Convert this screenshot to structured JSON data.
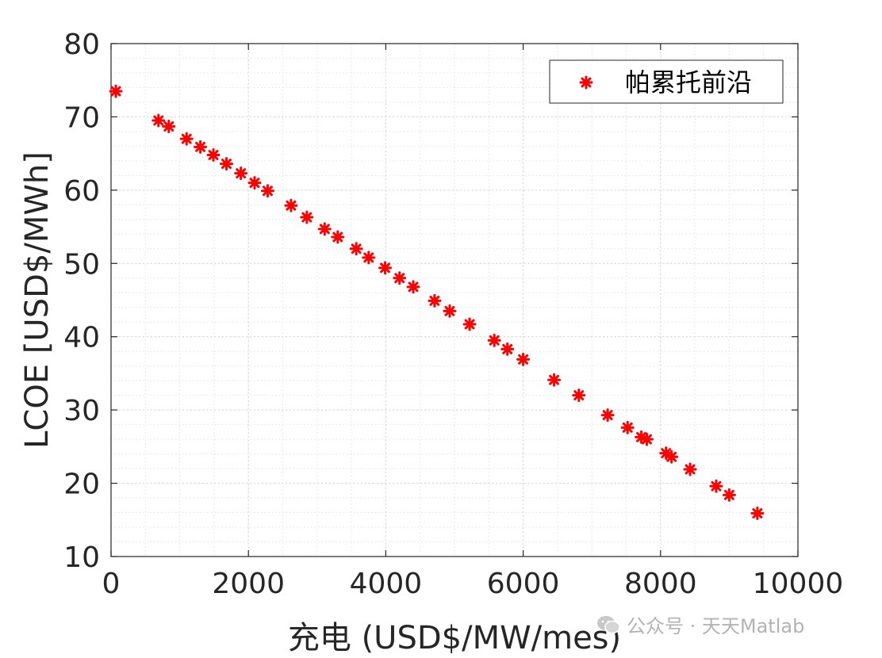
{
  "chart_data": {
    "type": "scatter",
    "xlabel": "充电 (USD$/MW/mes)",
    "ylabel": "LCOE [USD$/MWh]",
    "xlim": [
      0,
      10000
    ],
    "ylim": [
      10,
      80
    ],
    "xticks": [
      0,
      2000,
      4000,
      6000,
      8000,
      10000
    ],
    "yticks": [
      10,
      20,
      30,
      40,
      50,
      60,
      70,
      80
    ],
    "grid": "minor dotted",
    "legend_position": "top-right",
    "marker_color": "#ff0000",
    "series": [
      {
        "name": "帕累托前沿",
        "points": [
          [
            70,
            73.5
          ],
          [
            690,
            69.5
          ],
          [
            840,
            68.7
          ],
          [
            1100,
            67.0
          ],
          [
            1300,
            65.9
          ],
          [
            1490,
            64.8
          ],
          [
            1680,
            63.6
          ],
          [
            1890,
            62.3
          ],
          [
            2090,
            61.0
          ],
          [
            2280,
            59.9
          ],
          [
            2620,
            57.9
          ],
          [
            2850,
            56.3
          ],
          [
            3110,
            54.7
          ],
          [
            3300,
            53.6
          ],
          [
            3570,
            52.0
          ],
          [
            3750,
            50.8
          ],
          [
            3990,
            49.4
          ],
          [
            4200,
            48.0
          ],
          [
            4400,
            46.8
          ],
          [
            4710,
            44.9
          ],
          [
            4930,
            43.5
          ],
          [
            5220,
            41.7
          ],
          [
            5580,
            39.5
          ],
          [
            5770,
            38.3
          ],
          [
            6000,
            36.9
          ],
          [
            6450,
            34.1
          ],
          [
            6810,
            32.0
          ],
          [
            7230,
            29.3
          ],
          [
            7520,
            27.6
          ],
          [
            7720,
            26.3
          ],
          [
            7800,
            26.0
          ],
          [
            8080,
            24.1
          ],
          [
            8160,
            23.6
          ],
          [
            8430,
            21.9
          ],
          [
            8810,
            19.6
          ],
          [
            9000,
            18.4
          ],
          [
            9410,
            15.9
          ]
        ]
      }
    ]
  },
  "watermark": {
    "text": "公众号 · 天天Matlab"
  }
}
